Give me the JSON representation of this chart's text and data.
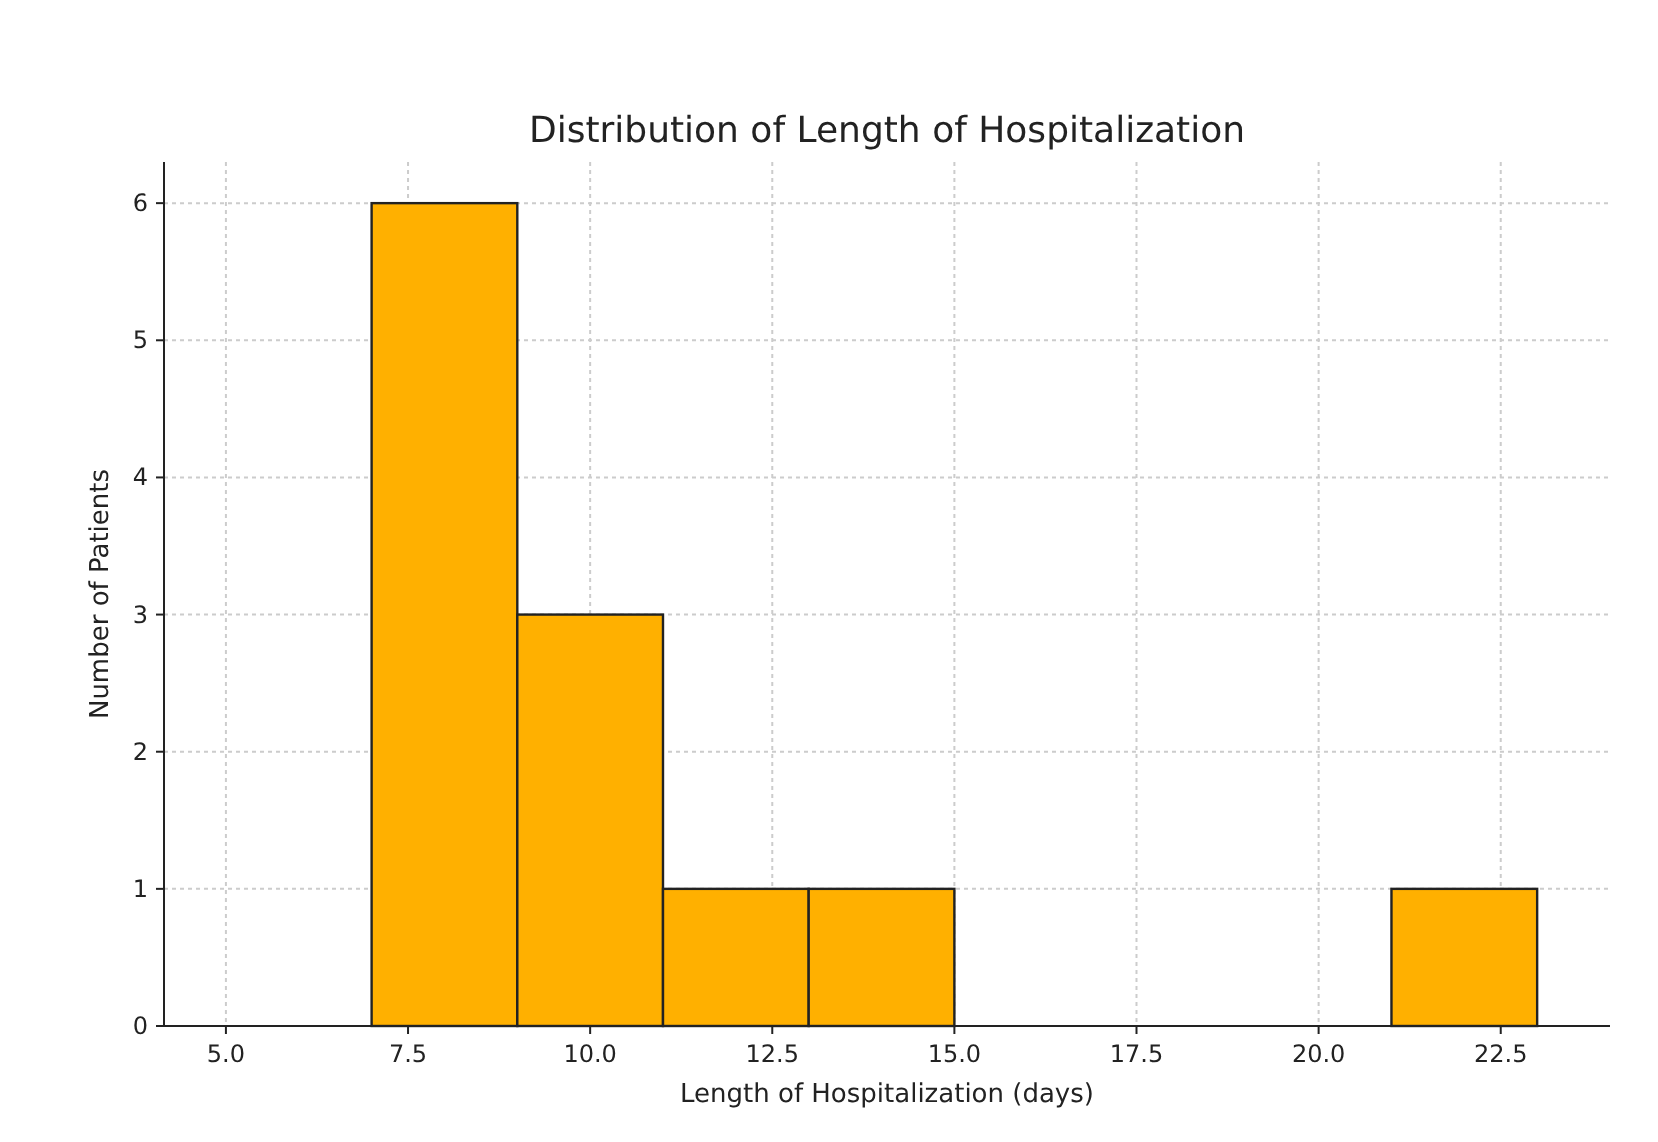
{
  "chart_data": {
    "type": "histogram",
    "title": "Distribution of Length of Hospitalization",
    "xlabel": "Length of Hospitalization (days)",
    "ylabel": "Number of Patients",
    "bins": [
      7,
      9,
      11,
      13,
      15,
      17,
      19,
      21,
      23
    ],
    "values": [
      6,
      3,
      1,
      1,
      0,
      0,
      0,
      1
    ],
    "color": "#ffb000",
    "xlim": [
      4.15,
      24
    ],
    "xticks": [
      {
        "value": 5,
        "label": "5.0"
      },
      {
        "value": 7.5,
        "label": "7.5"
      },
      {
        "value": 10,
        "label": "10.0"
      },
      {
        "value": 12.5,
        "label": "12.5"
      },
      {
        "value": 15,
        "label": "15.0"
      },
      {
        "value": 17.5,
        "label": "17.5"
      },
      {
        "value": 20,
        "label": "20.0"
      },
      {
        "value": 22.5,
        "label": "22.5"
      }
    ],
    "ylim": [
      0,
      6.3
    ],
    "yticks": [
      0,
      1,
      2,
      3,
      4,
      5,
      6
    ],
    "grid": true
  }
}
